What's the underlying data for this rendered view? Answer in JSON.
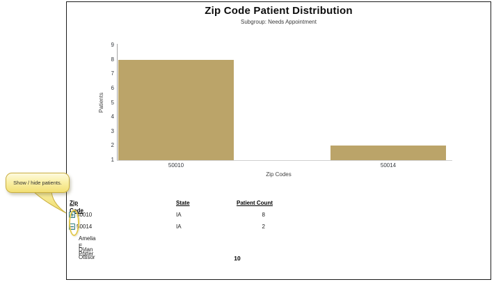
{
  "callout": {
    "text": "Show / hide patients."
  },
  "chart_data": {
    "type": "bar",
    "title": "Zip Code Patient Distribution",
    "subtitle": "Subgroup: Needs Appointment",
    "xlabel": "Zip Codes",
    "ylabel": "Patients",
    "categories": [
      "50010",
      "50014"
    ],
    "values": [
      8,
      2
    ],
    "ylim": [
      1,
      9
    ],
    "yticks": [
      1,
      2,
      3,
      4,
      5,
      6,
      7,
      8,
      9
    ],
    "grid": false,
    "legend": "none",
    "bar_color": "#BBA469"
  },
  "table": {
    "headers": {
      "zip": "Zip Code",
      "state": "State",
      "count": "Patient Count"
    },
    "rows": [
      {
        "expander": "plus",
        "zip": "50010",
        "state": "IA",
        "count": "8",
        "patients": []
      },
      {
        "expander": "minus",
        "zip": "50014",
        "state": "IA",
        "count": "2",
        "patients": [
          "Amelia E. Potter",
          "Dylan Ottisor"
        ]
      }
    ],
    "total": "10"
  },
  "colors": {
    "bar": "#BBA469",
    "expander_teal": "#2d7d7d",
    "callout_yellow": "#f2df74",
    "callout_border": "#c9ae3f",
    "panel_border": "#1b1b1b"
  }
}
